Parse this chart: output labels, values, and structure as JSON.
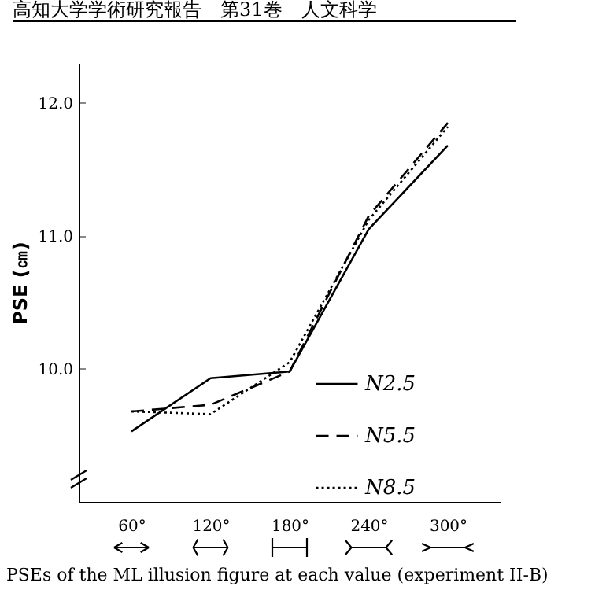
{
  "chart_data": {
    "type": "line",
    "ylabel": "PSE (㎝)",
    "x": [
      60,
      120,
      180,
      240,
      300
    ],
    "xlim": [
      20,
      340
    ],
    "xticks": [
      {
        "value": 60,
        "label": "60°"
      },
      {
        "value": 120,
        "label": "120°"
      },
      {
        "value": 180,
        "label": "180°"
      },
      {
        "value": 240,
        "label": "240°"
      },
      {
        "value": 300,
        "label": "300°"
      }
    ],
    "ylim": [
      9.0,
      12.3
    ],
    "yticks": [
      {
        "value": 10,
        "label": "10.0"
      },
      {
        "value": 11,
        "label": "11.0"
      },
      {
        "value": 12,
        "label": "12.0"
      }
    ],
    "series": [
      {
        "name": "N2.5",
        "color": "#000000",
        "line_style": "solid",
        "values": [
          9.53,
          9.93,
          9.98,
          11.05,
          11.68
        ]
      },
      {
        "name": "N5.5",
        "color": "#000000",
        "line_style": "dashed",
        "values": [
          9.68,
          9.73,
          9.98,
          11.15,
          11.85
        ]
      },
      {
        "name": "N8.5",
        "color": "#000000",
        "line_style": "dotted",
        "values": [
          9.68,
          9.66,
          10.05,
          11.12,
          11.82
        ]
      }
    ],
    "legend": "right",
    "grid": false,
    "marker": "none",
    "annotations": [
      "高知大学学術研究報告　第31巻　人文科学",
      "PSEs of the ML illusion figure at each value (experiment II-B)"
    ]
  }
}
